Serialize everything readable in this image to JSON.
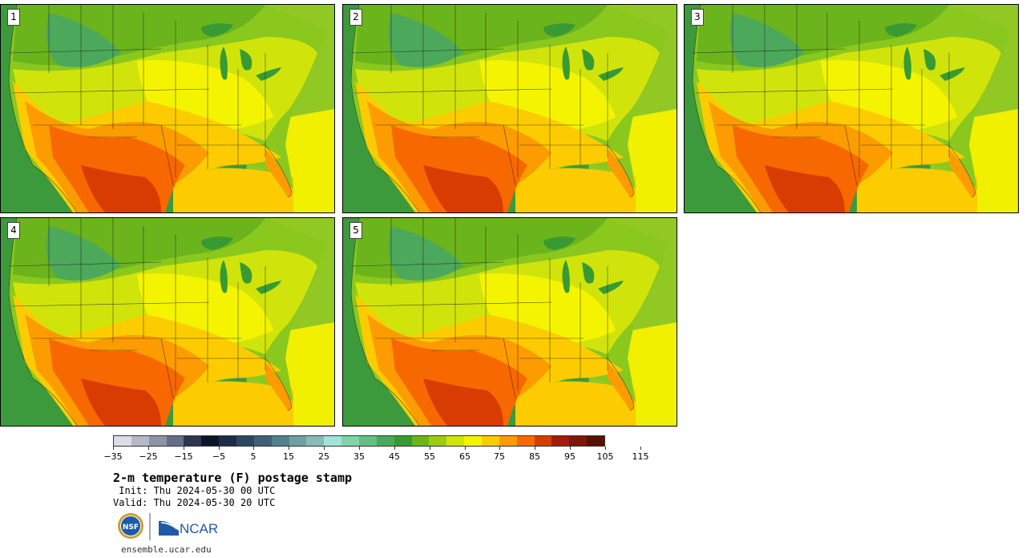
{
  "panels": [
    {
      "label": "1"
    },
    {
      "label": "2"
    },
    {
      "label": "3"
    },
    {
      "label": "4"
    },
    {
      "label": "5"
    }
  ],
  "colorbar": {
    "colors": [
      "#dcdce6",
      "#b4b8c8",
      "#8c94a8",
      "#646e88",
      "#2c3650",
      "#0c1428",
      "#1c2c48",
      "#2c4664",
      "#3e6078",
      "#54808c",
      "#6ea0a4",
      "#86bcb8",
      "#a0e4d8",
      "#84d2aa",
      "#66be84",
      "#4ca85a",
      "#389a32",
      "#6cb41c",
      "#9ccc0c",
      "#d0e40c",
      "#f4f400",
      "#fccc00",
      "#fc9c00",
      "#f86800",
      "#d83c00",
      "#a41c08",
      "#7c1808",
      "#581004"
    ],
    "tick_labels": [
      "−35",
      "−25",
      "−15",
      "−5",
      "5",
      "15",
      "25",
      "35",
      "45",
      "55",
      "65",
      "75",
      "85",
      "95",
      "105",
      "115"
    ]
  },
  "title": "2-m temperature (F) postage stamp",
  "init": " Init: Thu 2024-05-30 00 UTC",
  "valid": "Valid: Thu 2024-05-30 20 UTC",
  "logos": {
    "nsf": "NSF",
    "ncar": "NCAR"
  },
  "url": "ensemble.ucar.edu"
}
